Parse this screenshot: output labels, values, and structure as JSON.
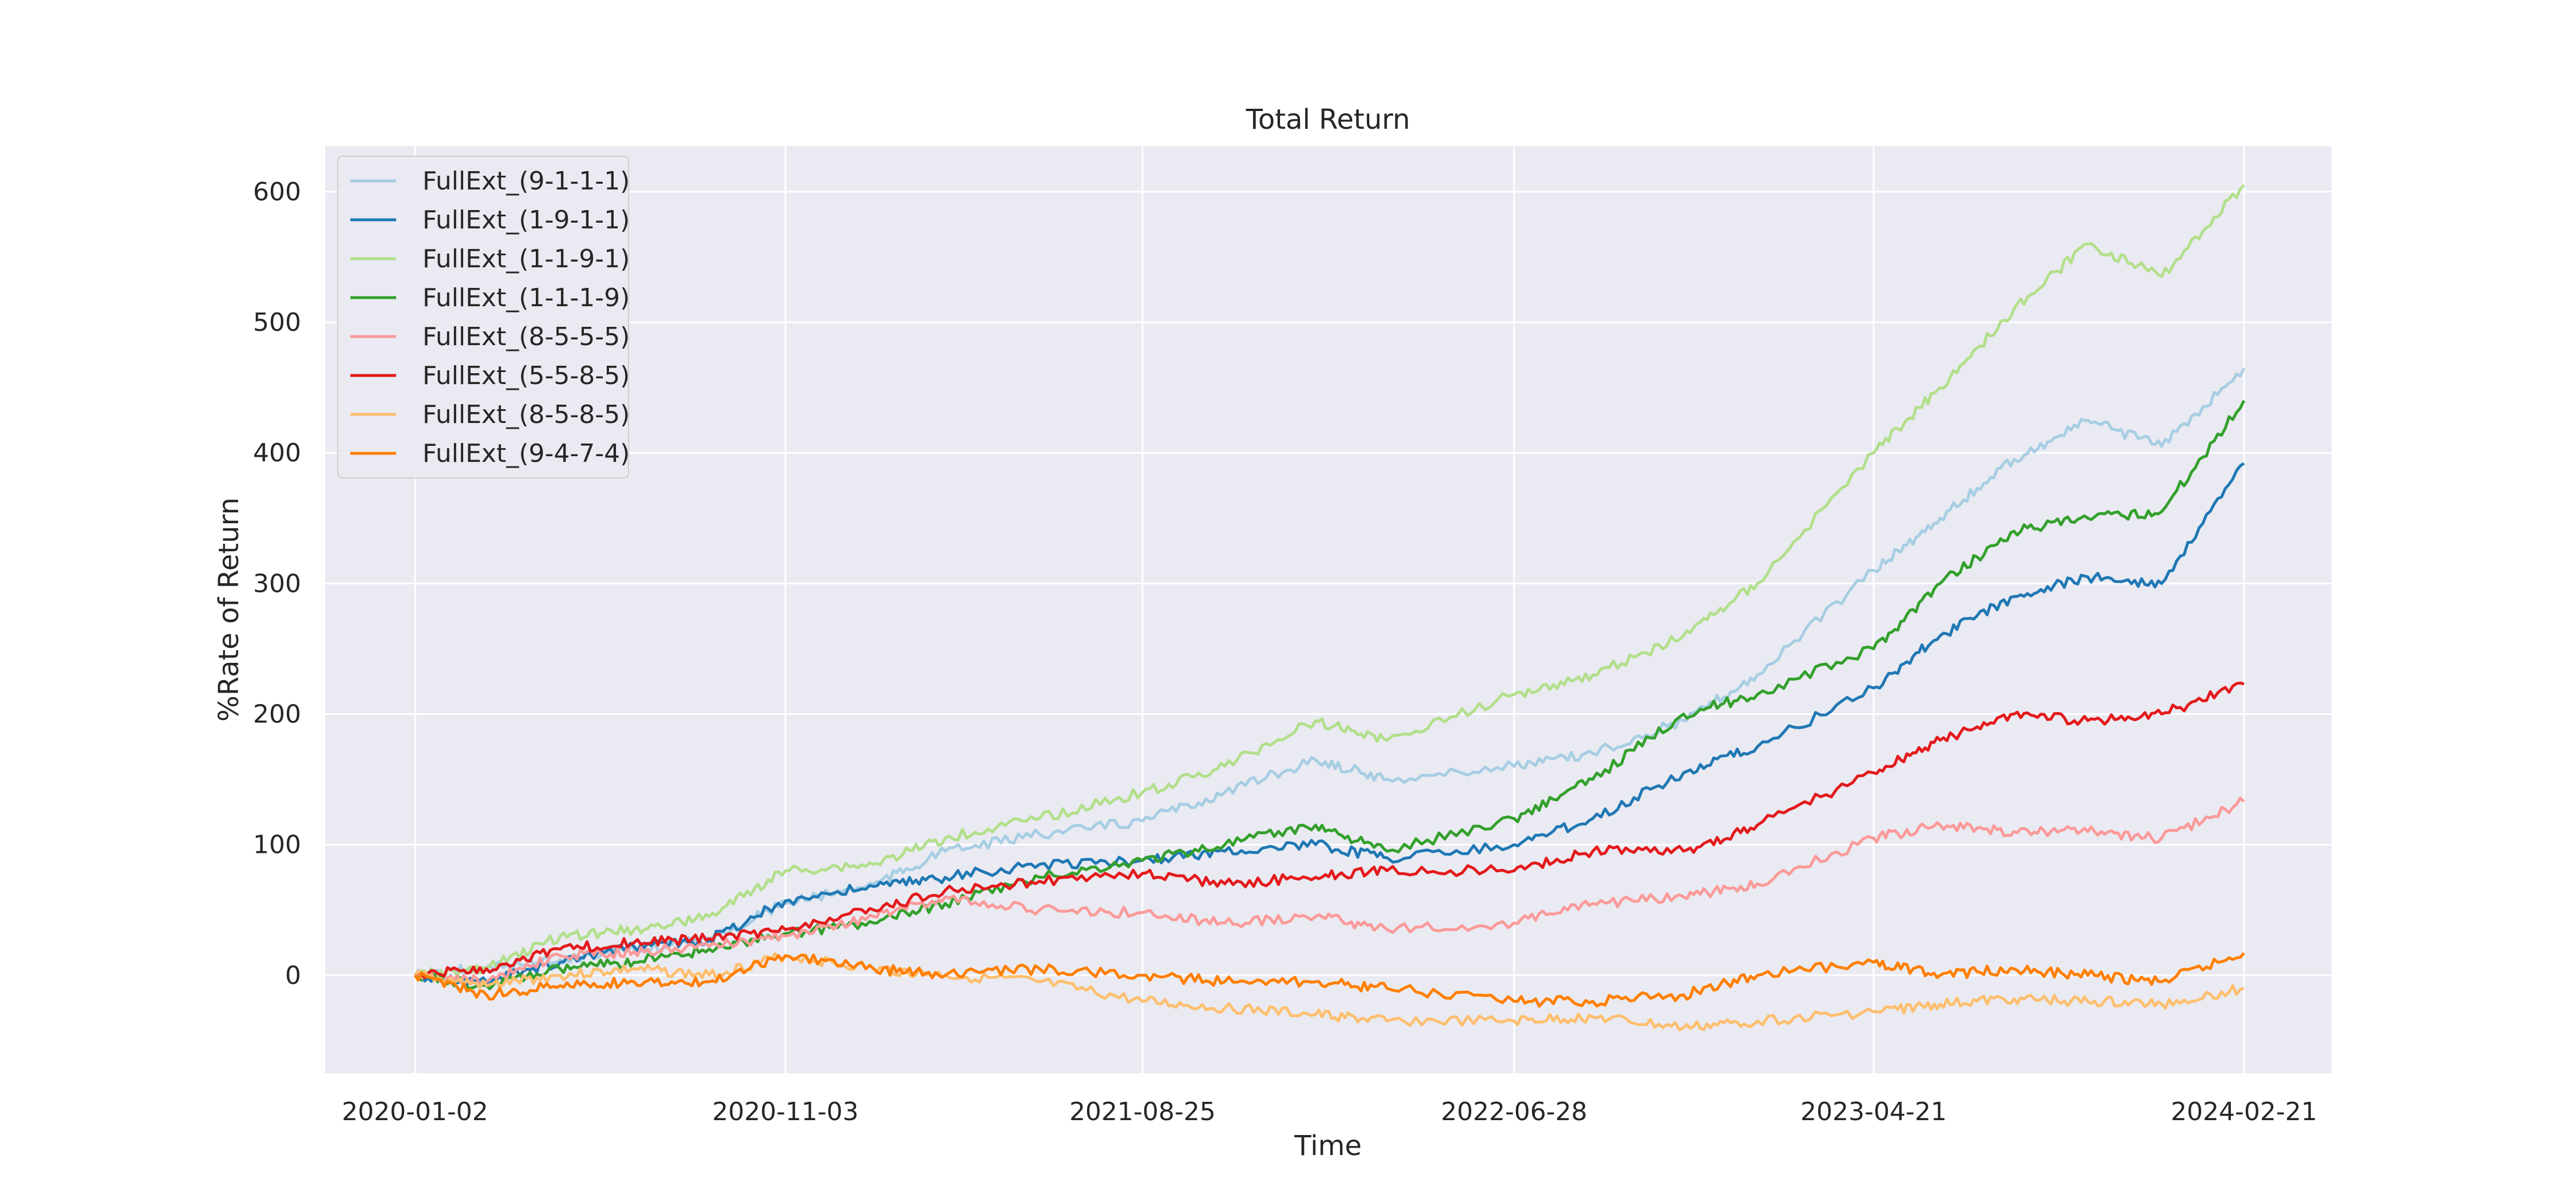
{
  "chart_data": {
    "type": "line",
    "title": "Total Return",
    "xlabel": "Time",
    "ylabel": "%Rate of Return",
    "x_ticks": [
      "2020-01-02",
      "2020-11-03",
      "2021-08-25",
      "2022-06-28",
      "2023-04-21",
      "2024-02-21"
    ],
    "x_range": [
      "2020-01-02",
      "2024-02-21"
    ],
    "y_ticks": [
      0,
      100,
      200,
      300,
      400,
      500,
      600
    ],
    "ylim": [
      -75,
      635
    ],
    "grid": true,
    "legend_position": "top-left",
    "series": [
      {
        "name": "FullExt_(9-1-1-1)",
        "color": "#a6cee3",
        "points": [
          [
            "2020-01-02",
            0
          ],
          [
            "2020-03-01",
            6
          ],
          [
            "2020-05-01",
            12
          ],
          [
            "2020-07-01",
            20
          ],
          [
            "2020-09-01",
            28
          ],
          [
            "2020-11-03",
            55
          ],
          [
            "2021-01-15",
            70
          ],
          [
            "2021-03-15",
            95
          ],
          [
            "2021-06-01",
            108
          ],
          [
            "2021-08-25",
            118
          ],
          [
            "2021-11-01",
            140
          ],
          [
            "2022-01-15",
            165
          ],
          [
            "2022-03-15",
            150
          ],
          [
            "2022-06-28",
            160
          ],
          [
            "2022-09-01",
            170
          ],
          [
            "2022-11-15",
            195
          ],
          [
            "2023-01-15",
            230
          ],
          [
            "2023-04-21",
            310
          ],
          [
            "2023-06-15",
            350
          ],
          [
            "2023-08-15",
            395
          ],
          [
            "2023-10-15",
            425
          ],
          [
            "2023-12-15",
            405
          ],
          [
            "2024-02-21",
            465
          ]
        ]
      },
      {
        "name": "FullExt_(1-9-1-1)",
        "color": "#1f78b4",
        "points": [
          [
            "2020-01-02",
            0
          ],
          [
            "2020-03-01",
            -5
          ],
          [
            "2020-05-01",
            10
          ],
          [
            "2020-07-01",
            22
          ],
          [
            "2020-09-01",
            27
          ],
          [
            "2020-11-03",
            57
          ],
          [
            "2021-01-15",
            68
          ],
          [
            "2021-03-15",
            75
          ],
          [
            "2021-06-01",
            85
          ],
          [
            "2021-08-25",
            88
          ],
          [
            "2021-11-01",
            95
          ],
          [
            "2022-01-15",
            100
          ],
          [
            "2022-03-15",
            90
          ],
          [
            "2022-06-28",
            100
          ],
          [
            "2022-09-01",
            120
          ],
          [
            "2022-11-15",
            155
          ],
          [
            "2023-01-15",
            175
          ],
          [
            "2023-04-21",
            220
          ],
          [
            "2023-06-15",
            260
          ],
          [
            "2023-08-15",
            290
          ],
          [
            "2023-10-15",
            305
          ],
          [
            "2023-12-15",
            300
          ],
          [
            "2024-02-21",
            392
          ]
        ]
      },
      {
        "name": "FullExt_(1-1-9-1)",
        "color": "#b2df8a",
        "points": [
          [
            "2020-01-02",
            0
          ],
          [
            "2020-03-01",
            5
          ],
          [
            "2020-05-01",
            30
          ],
          [
            "2020-07-01",
            35
          ],
          [
            "2020-09-01",
            45
          ],
          [
            "2020-11-03",
            80
          ],
          [
            "2021-01-15",
            85
          ],
          [
            "2021-03-15",
            105
          ],
          [
            "2021-06-01",
            120
          ],
          [
            "2021-08-25",
            140
          ],
          [
            "2021-11-01",
            160
          ],
          [
            "2022-01-15",
            195
          ],
          [
            "2022-03-15",
            180
          ],
          [
            "2022-06-28",
            215
          ],
          [
            "2022-09-01",
            230
          ],
          [
            "2022-11-15",
            260
          ],
          [
            "2023-01-15",
            300
          ],
          [
            "2023-04-21",
            400
          ],
          [
            "2023-06-15",
            450
          ],
          [
            "2023-08-15",
            510
          ],
          [
            "2023-10-15",
            560
          ],
          [
            "2023-12-15",
            535
          ],
          [
            "2024-02-21",
            605
          ]
        ]
      },
      {
        "name": "FullExt_(1-1-1-9)",
        "color": "#33a02c",
        "points": [
          [
            "2020-01-02",
            0
          ],
          [
            "2020-03-01",
            -8
          ],
          [
            "2020-05-01",
            5
          ],
          [
            "2020-07-01",
            10
          ],
          [
            "2020-09-01",
            20
          ],
          [
            "2020-11-03",
            32
          ],
          [
            "2021-01-15",
            40
          ],
          [
            "2021-03-15",
            55
          ],
          [
            "2021-06-01",
            75
          ],
          [
            "2021-08-25",
            88
          ],
          [
            "2021-11-01",
            100
          ],
          [
            "2022-01-15",
            115
          ],
          [
            "2022-03-15",
            95
          ],
          [
            "2022-06-28",
            120
          ],
          [
            "2022-09-01",
            150
          ],
          [
            "2022-11-15",
            200
          ],
          [
            "2023-01-15",
            215
          ],
          [
            "2023-04-21",
            250
          ],
          [
            "2023-06-15",
            300
          ],
          [
            "2023-08-15",
            340
          ],
          [
            "2023-10-15",
            350
          ],
          [
            "2023-12-15",
            355
          ],
          [
            "2024-02-21",
            440
          ]
        ]
      },
      {
        "name": "FullExt_(8-5-5-5)",
        "color": "#fb9a99",
        "points": [
          [
            "2020-01-02",
            0
          ],
          [
            "2020-03-01",
            -5
          ],
          [
            "2020-05-01",
            15
          ],
          [
            "2020-07-01",
            18
          ],
          [
            "2020-09-01",
            22
          ],
          [
            "2020-11-03",
            30
          ],
          [
            "2021-01-15",
            45
          ],
          [
            "2021-03-15",
            60
          ],
          [
            "2021-06-01",
            50
          ],
          [
            "2021-08-25",
            48
          ],
          [
            "2021-11-01",
            40
          ],
          [
            "2022-01-15",
            45
          ],
          [
            "2022-03-15",
            35
          ],
          [
            "2022-06-28",
            40
          ],
          [
            "2022-09-01",
            55
          ],
          [
            "2022-11-15",
            60
          ],
          [
            "2023-01-15",
            70
          ],
          [
            "2023-04-21",
            105
          ],
          [
            "2023-06-15",
            115
          ],
          [
            "2023-08-15",
            110
          ],
          [
            "2023-10-15",
            110
          ],
          [
            "2023-12-15",
            105
          ],
          [
            "2024-02-21",
            133
          ]
        ]
      },
      {
        "name": "FullExt_(5-5-8-5)",
        "color": "#e31a1c",
        "points": [
          [
            "2020-01-02",
            0
          ],
          [
            "2020-03-01",
            5
          ],
          [
            "2020-05-01",
            20
          ],
          [
            "2020-07-01",
            25
          ],
          [
            "2020-09-01",
            28
          ],
          [
            "2020-11-03",
            35
          ],
          [
            "2021-01-15",
            50
          ],
          [
            "2021-03-15",
            65
          ],
          [
            "2021-06-01",
            72
          ],
          [
            "2021-08-25",
            78
          ],
          [
            "2021-11-01",
            70
          ],
          [
            "2022-01-15",
            75
          ],
          [
            "2022-03-15",
            80
          ],
          [
            "2022-06-28",
            80
          ],
          [
            "2022-09-01",
            95
          ],
          [
            "2022-11-15",
            95
          ],
          [
            "2023-01-15",
            115
          ],
          [
            "2023-04-21",
            155
          ],
          [
            "2023-06-15",
            180
          ],
          [
            "2023-08-15",
            200
          ],
          [
            "2023-10-15",
            195
          ],
          [
            "2023-12-15",
            200
          ],
          [
            "2024-02-21",
            223
          ]
        ]
      },
      {
        "name": "FullExt_(8-5-8-5)",
        "color": "#fdbf6f",
        "points": [
          [
            "2020-01-02",
            0
          ],
          [
            "2020-03-01",
            -8
          ],
          [
            "2020-05-01",
            0
          ],
          [
            "2020-07-01",
            5
          ],
          [
            "2020-09-01",
            0
          ],
          [
            "2020-11-03",
            15
          ],
          [
            "2021-01-15",
            5
          ],
          [
            "2021-03-15",
            0
          ],
          [
            "2021-06-01",
            -5
          ],
          [
            "2021-08-25",
            -20
          ],
          [
            "2021-11-01",
            -25
          ],
          [
            "2022-01-15",
            -30
          ],
          [
            "2022-03-15",
            -35
          ],
          [
            "2022-06-28",
            -35
          ],
          [
            "2022-09-01",
            -32
          ],
          [
            "2022-11-15",
            -40
          ],
          [
            "2023-01-15",
            -35
          ],
          [
            "2023-04-21",
            -28
          ],
          [
            "2023-06-15",
            -22
          ],
          [
            "2023-08-15",
            -18
          ],
          [
            "2023-10-15",
            -20
          ],
          [
            "2023-12-15",
            -22
          ],
          [
            "2024-02-21",
            -10
          ]
        ]
      },
      {
        "name": "FullExt_(9-4-7-4)",
        "color": "#ff7f00",
        "points": [
          [
            "2020-01-02",
            0
          ],
          [
            "2020-03-01",
            -15
          ],
          [
            "2020-05-01",
            -8
          ],
          [
            "2020-07-01",
            -5
          ],
          [
            "2020-09-01",
            -5
          ],
          [
            "2020-11-03",
            15
          ],
          [
            "2021-01-15",
            5
          ],
          [
            "2021-03-15",
            0
          ],
          [
            "2021-06-01",
            5
          ],
          [
            "2021-08-25",
            0
          ],
          [
            "2021-11-01",
            -5
          ],
          [
            "2022-01-15",
            -5
          ],
          [
            "2022-03-15",
            -10
          ],
          [
            "2022-06-28",
            -20
          ],
          [
            "2022-09-01",
            -20
          ],
          [
            "2022-11-15",
            -15
          ],
          [
            "2023-01-15",
            0
          ],
          [
            "2023-04-21",
            10
          ],
          [
            "2023-06-15",
            0
          ],
          [
            "2023-08-15",
            5
          ],
          [
            "2023-10-15",
            0
          ],
          [
            "2023-12-15",
            -5
          ],
          [
            "2024-02-21",
            17
          ]
        ]
      }
    ]
  }
}
